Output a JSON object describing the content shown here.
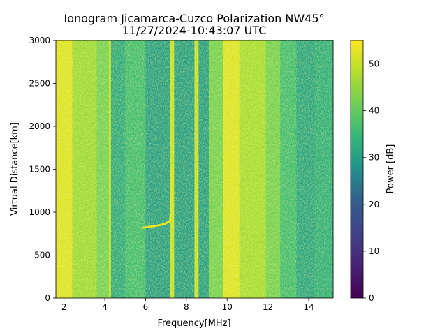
{
  "chart_data": {
    "type": "heatmap",
    "title": "Ionogram Jicamarca-Cuzco Polarization NW45°",
    "subtitle": "11/27/2024-10:43:07 UTC",
    "xlabel": "Frequency[MHz]",
    "ylabel": "Virtual Distance[km]",
    "xlim": [
      1.6,
      15.2
    ],
    "ylim": [
      0,
      3000
    ],
    "x_ticks": [
      2,
      4,
      6,
      8,
      10,
      12,
      14
    ],
    "y_ticks": [
      0,
      500,
      1000,
      1500,
      2000,
      2500,
      3000
    ],
    "colorbar": {
      "label": "Power [dB]",
      "range": [
        0,
        55
      ],
      "ticks": [
        0,
        10,
        20,
        30,
        40,
        50
      ],
      "colormap": "viridis"
    },
    "grid": false,
    "bands": [
      {
        "x": [
          1.6,
          2.4
        ],
        "level": 52
      },
      {
        "x": [
          2.4,
          3.6
        ],
        "level": 46
      },
      {
        "x": [
          3.6,
          4.2
        ],
        "level": 42
      },
      {
        "x": [
          4.2,
          4.3
        ],
        "level": 50
      },
      {
        "x": [
          4.3,
          5.0
        ],
        "level": 32
      },
      {
        "x": [
          5.0,
          6.0
        ],
        "level": 36
      },
      {
        "x": [
          6.0,
          7.2
        ],
        "level": 30
      },
      {
        "x": [
          7.2,
          7.4
        ],
        "level": 50
      },
      {
        "x": [
          7.4,
          8.4
        ],
        "level": 30
      },
      {
        "x": [
          8.4,
          8.6
        ],
        "level": 50
      },
      {
        "x": [
          8.6,
          9.1
        ],
        "level": 30
      },
      {
        "x": [
          9.1,
          9.8
        ],
        "level": 42
      },
      {
        "x": [
          9.8,
          10.6
        ],
        "level": 52
      },
      {
        "x": [
          10.6,
          11.9
        ],
        "level": 47
      },
      {
        "x": [
          11.9,
          12.6
        ],
        "level": 42
      },
      {
        "x": [
          12.6,
          13.4
        ],
        "level": 36
      },
      {
        "x": [
          13.4,
          14.3
        ],
        "level": 31
      },
      {
        "x": [
          14.3,
          15.2
        ],
        "level": 33
      }
    ],
    "trace": {
      "x": [
        5.9,
        6.2,
        6.5,
        6.8,
        7.0,
        7.2,
        7.25,
        7.3
      ],
      "y": [
        820,
        830,
        840,
        855,
        870,
        900,
        1000,
        1500
      ],
      "level": 53
    }
  }
}
